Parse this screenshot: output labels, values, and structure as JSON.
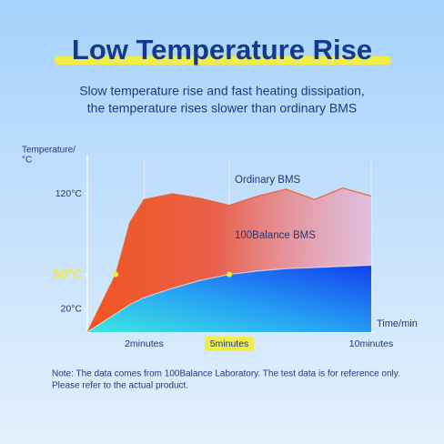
{
  "chart_data": {
    "type": "area",
    "title": "Low Temperature Rise",
    "subtitle": [
      "Slow temperature rise and fast heating dissipation,",
      "the temperature rises slower than ordinary BMS"
    ],
    "y_label": [
      "Temperature/",
      "°C"
    ],
    "x_label": "Time/min",
    "x": [
      0,
      0.5,
      1,
      1.5,
      2,
      3,
      4,
      5,
      6,
      7,
      8,
      9,
      10
    ],
    "series": [
      {
        "name": "Ordinary BMS",
        "color": "#f05a28",
        "values": [
          0,
          25,
          50,
          95,
          115,
          120,
          116,
          110,
          118,
          124,
          115,
          125,
          118
        ]
      },
      {
        "name": "100Balance BMS",
        "color": "#1f5cf0",
        "values": [
          0,
          8,
          16,
          24,
          30,
          38,
          45,
          50,
          53,
          55,
          56,
          57,
          58
        ]
      }
    ],
    "xlim": [
      0,
      10
    ],
    "xticks": [
      {
        "value": 2,
        "label": "2minutes"
      },
      {
        "value": 5,
        "label": "5minutes"
      },
      {
        "value": 10,
        "label": "10minutes"
      }
    ],
    "ylim": [
      0,
      150
    ],
    "yticks": [
      {
        "value": 20,
        "label": "20°C"
      },
      {
        "value": 50,
        "label": "50°C"
      },
      {
        "value": 120,
        "label": "120°C"
      }
    ],
    "note": [
      "Note: The data comes from 100Balance Laboratory. The test data is for reference only.",
      "Please refer to the actual product."
    ]
  }
}
